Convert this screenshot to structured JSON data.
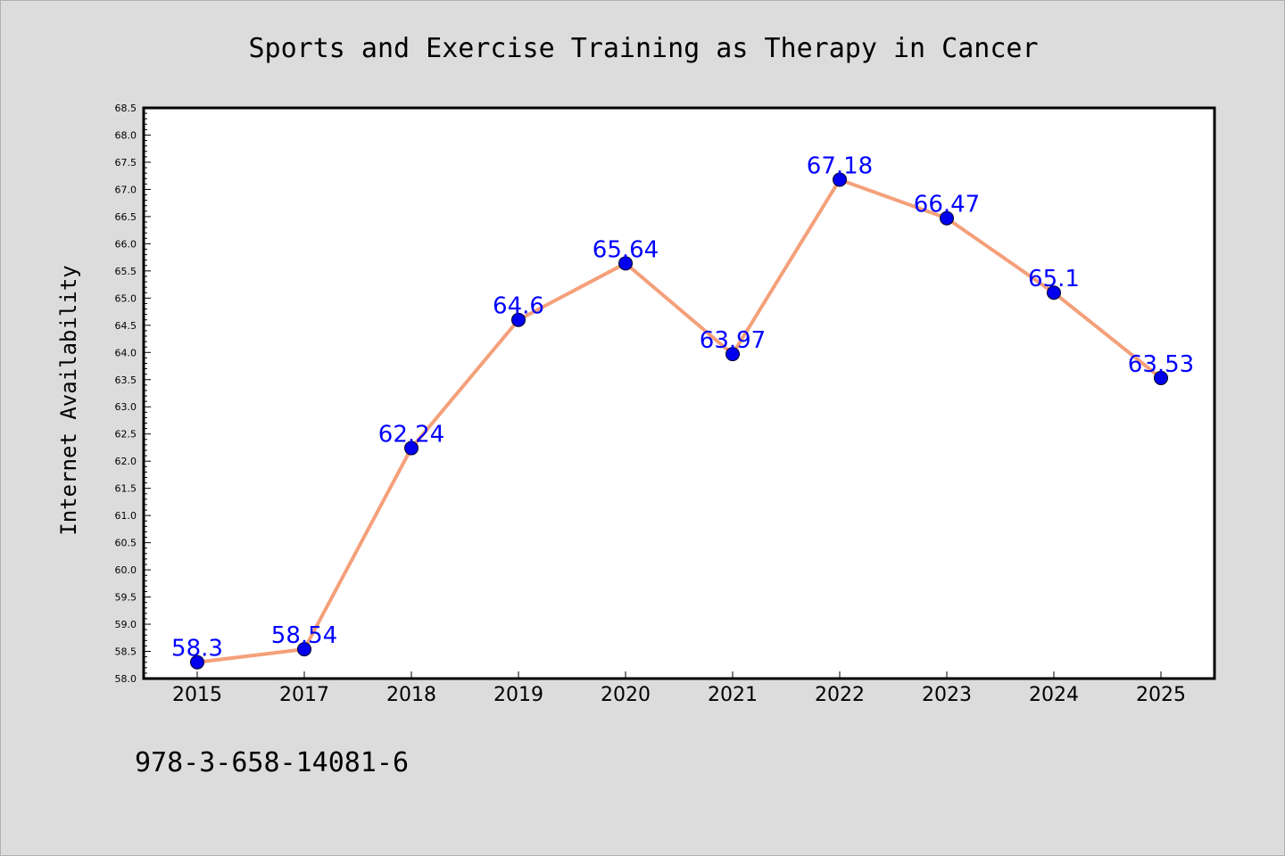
{
  "chart_data": {
    "type": "line",
    "title": "Sports and Exercise Training as Therapy in Cancer",
    "xlabel": "",
    "ylabel": "Internet Availability",
    "categories": [
      "2015",
      "2017",
      "2018",
      "2019",
      "2020",
      "2021",
      "2022",
      "2023",
      "2024",
      "2025"
    ],
    "series": [
      {
        "values": [
          58.3,
          58.54,
          62.24,
          64.6,
          65.64,
          63.97,
          67.18,
          66.47,
          65.1,
          63.53
        ],
        "labels": [
          "58.3",
          "58.54",
          "62.24",
          "64.6",
          "65.64",
          "63.97",
          "67.18",
          "66.47",
          "65.1",
          "63.53"
        ],
        "line_color": "#f4a07a",
        "marker_color": "#0000ee",
        "label_color": "#0000ff"
      }
    ],
    "ylim": [
      58.0,
      68.5
    ],
    "yticks": [
      "58.0",
      "58.5",
      "59.0",
      "59.5",
      "60.0",
      "60.5",
      "61.0",
      "61.5",
      "62.0",
      "62.5",
      "63.0",
      "63.5",
      "64.0",
      "64.5",
      "65.0",
      "65.5",
      "66.0",
      "66.5",
      "67.0",
      "67.5",
      "68.0",
      "68.5"
    ],
    "grid": false,
    "legend": "none"
  },
  "footer": {
    "text": "978-3-658-14081-6"
  },
  "colors": {
    "background": "#dcdcdc",
    "plot_background": "#ffffff",
    "axis": "#000000"
  }
}
